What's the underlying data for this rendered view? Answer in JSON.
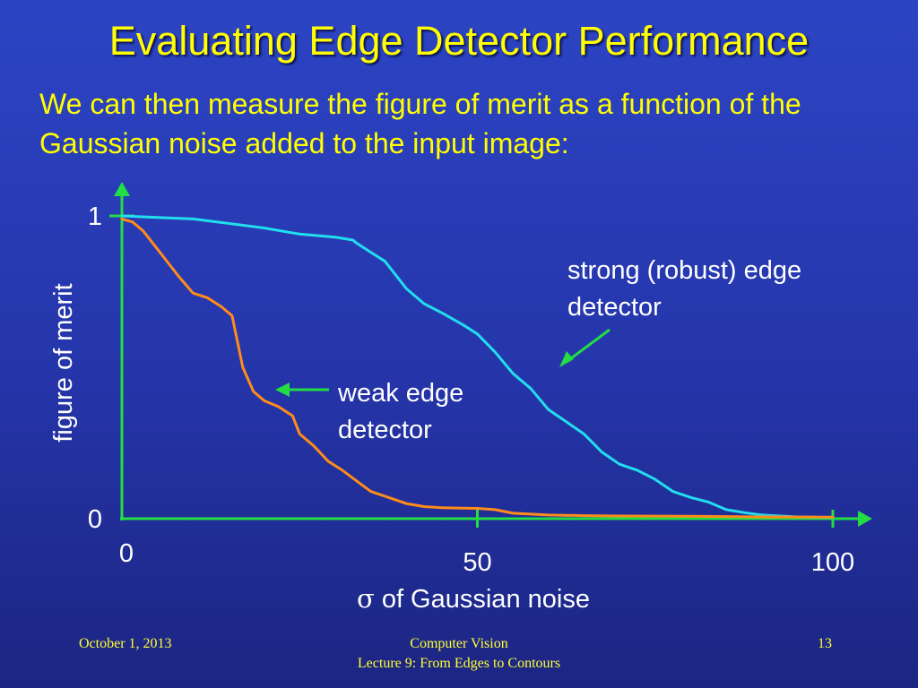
{
  "slide": {
    "title": "Evaluating Edge Detector Performance",
    "subtitle": "We can then measure the figure of merit as a function of the Gaussian noise added to the input image:",
    "footer": {
      "date": "October 1, 2013",
      "course": "Computer Vision",
      "lecture": "Lecture 9: From Edges to Contours",
      "page": "13"
    }
  },
  "colors": {
    "axis": "#22dd44",
    "strong_series": "#22ddee",
    "weak_series": "#ff8c1a",
    "arrow": "#22dd44"
  },
  "chart_data": {
    "type": "line",
    "xlabel": "of Gaussian noise",
    "xlabel_symbol": "σ",
    "ylabel": "figure of merit",
    "xlim": [
      0,
      105
    ],
    "ylim": [
      0,
      1
    ],
    "x_ticks": [
      {
        "value": 0,
        "label": "0"
      },
      {
        "value": 50,
        "label": "50"
      },
      {
        "value": 100,
        "label": "100"
      }
    ],
    "y_ticks": [
      {
        "value": 0,
        "label": "0"
      },
      {
        "value": 1,
        "label": "1"
      }
    ],
    "grid": false,
    "series": [
      {
        "name": "strong (robust) edge detector",
        "label_lines": [
          "strong (robust) edge",
          "detector"
        ],
        "points": [
          [
            0,
            1.0
          ],
          [
            5,
            0.995
          ],
          [
            10,
            0.99
          ],
          [
            15,
            0.975
          ],
          [
            20,
            0.96
          ],
          [
            25,
            0.94
          ],
          [
            30,
            0.93
          ],
          [
            32.5,
            0.92
          ],
          [
            33,
            0.91
          ],
          [
            35,
            0.88
          ],
          [
            37,
            0.85
          ],
          [
            40,
            0.76
          ],
          [
            42.5,
            0.71
          ],
          [
            45,
            0.68
          ],
          [
            48,
            0.64
          ],
          [
            50,
            0.61
          ],
          [
            52.5,
            0.55
          ],
          [
            55,
            0.48
          ],
          [
            57.5,
            0.43
          ],
          [
            60,
            0.36
          ],
          [
            62.5,
            0.32
          ],
          [
            65,
            0.28
          ],
          [
            67.5,
            0.22
          ],
          [
            70,
            0.18
          ],
          [
            72.5,
            0.16
          ],
          [
            75,
            0.13
          ],
          [
            77.5,
            0.09
          ],
          [
            80,
            0.07
          ],
          [
            82.5,
            0.055
          ],
          [
            85,
            0.03
          ],
          [
            87.5,
            0.02
          ],
          [
            90,
            0.012
          ],
          [
            95,
            0.006
          ],
          [
            100,
            0.004
          ]
        ]
      },
      {
        "name": "weak edge detector",
        "label_lines": [
          "weak edge",
          "detector"
        ],
        "points": [
          [
            0,
            0.99
          ],
          [
            1.5,
            0.98
          ],
          [
            3,
            0.95
          ],
          [
            5,
            0.89
          ],
          [
            7,
            0.83
          ],
          [
            8,
            0.8
          ],
          [
            10,
            0.745
          ],
          [
            12,
            0.73
          ],
          [
            14,
            0.7
          ],
          [
            15.5,
            0.67
          ],
          [
            17,
            0.5
          ],
          [
            18.5,
            0.42
          ],
          [
            20,
            0.39
          ],
          [
            22,
            0.37
          ],
          [
            24,
            0.34
          ],
          [
            25,
            0.28
          ],
          [
            27,
            0.24
          ],
          [
            29,
            0.19
          ],
          [
            31,
            0.16
          ],
          [
            33,
            0.125
          ],
          [
            35,
            0.09
          ],
          [
            37.5,
            0.07
          ],
          [
            40,
            0.05
          ],
          [
            42.5,
            0.04
          ],
          [
            45,
            0.036
          ],
          [
            50,
            0.034
          ],
          [
            52.5,
            0.03
          ],
          [
            55,
            0.018
          ],
          [
            60,
            0.012
          ],
          [
            65,
            0.01
          ],
          [
            70,
            0.009
          ],
          [
            80,
            0.008
          ],
          [
            90,
            0.006
          ],
          [
            100,
            0.005
          ]
        ]
      }
    ]
  }
}
